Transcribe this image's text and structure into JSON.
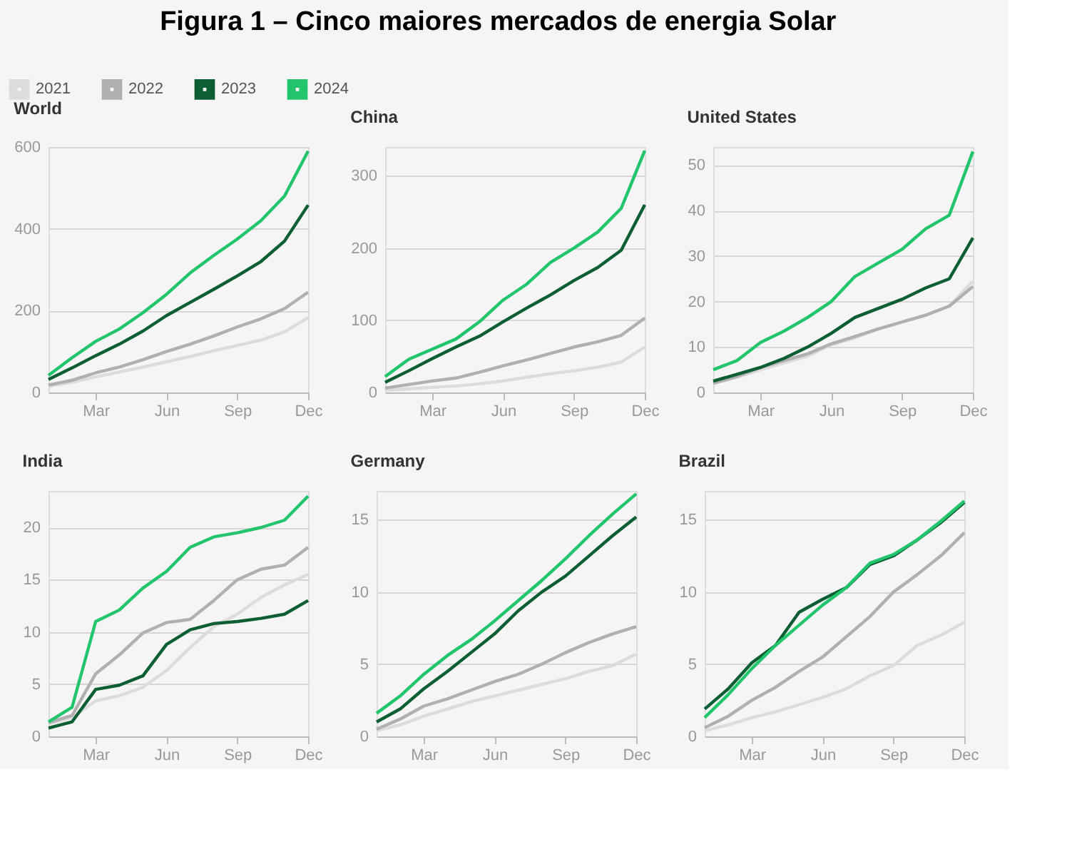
{
  "chart_data": [
    {
      "type": "line",
      "title": "World",
      "annotations": [
        "Figura 1 – Cinco maiores mercados de energia Solar"
      ],
      "legend": "top left",
      "grid": "y",
      "categories": [
        null,
        null,
        "Mar",
        null,
        null,
        "Jun",
        null,
        null,
        "Sep",
        null,
        null,
        "Dec"
      ],
      "ylim": [
        0,
        600
      ],
      "yticks": [
        0,
        200,
        400,
        600
      ],
      "series": [
        {
          "name": "2021",
          "color": "#dcdcdc",
          "values": [
            15,
            25,
            38,
            50,
            62,
            75,
            88,
            102,
            115,
            128,
            148,
            183
          ]
        },
        {
          "name": "2022",
          "color": "#b0b0b0",
          "values": [
            18,
            30,
            48,
            62,
            80,
            100,
            118,
            138,
            160,
            180,
            205,
            245
          ]
        },
        {
          "name": "2023",
          "color": "#0d5e32",
          "values": [
            32,
            60,
            90,
            118,
            150,
            188,
            220,
            252,
            285,
            320,
            370,
            458
          ]
        },
        {
          "name": "2024",
          "color": "#22c56c",
          "values": [
            42,
            85,
            125,
            155,
            195,
            240,
            292,
            335,
            375,
            420,
            480,
            590
          ]
        }
      ]
    },
    {
      "type": "line",
      "title": "China",
      "grid": "y",
      "categories": [
        null,
        null,
        "Mar",
        null,
        null,
        "Jun",
        null,
        null,
        "Sep",
        null,
        null,
        "Dec"
      ],
      "ylim": [
        0,
        340
      ],
      "yticks": [
        0,
        100,
        200,
        300
      ],
      "series": [
        {
          "color": "#dcdcdc",
          "values": [
            3,
            5,
            7,
            9,
            12,
            16,
            21,
            26,
            30,
            35,
            42,
            63
          ]
        },
        {
          "color": "#b0b0b0",
          "values": [
            6,
            11,
            16,
            20,
            28,
            37,
            45,
            54,
            63,
            70,
            79,
            103
          ]
        },
        {
          "color": "#0d5e32",
          "values": [
            14,
            30,
            47,
            63,
            78,
            98,
            117,
            135,
            155,
            173,
            197,
            260
          ]
        },
        {
          "color": "#22c56c",
          "values": [
            22,
            46,
            60,
            74,
            98,
            128,
            150,
            180,
            200,
            222,
            255,
            335
          ]
        }
      ]
    },
    {
      "type": "line",
      "title": "United States",
      "grid": "y",
      "categories": [
        null,
        null,
        "Mar",
        null,
        null,
        "Jun",
        null,
        null,
        "Sep",
        null,
        null,
        "Dec"
      ],
      "ylim": [
        0,
        54
      ],
      "yticks": [
        0,
        10,
        20,
        30,
        40,
        50
      ],
      "series": [
        {
          "color": "#dcdcdc",
          "values": [
            2,
            3.3,
            5,
            6.5,
            8,
            10.5,
            12,
            14,
            15.5,
            17,
            19,
            24.5
          ]
        },
        {
          "color": "#b0b0b0",
          "values": [
            2,
            3.5,
            5.5,
            7,
            8.5,
            10.7,
            12.3,
            14,
            15.5,
            17,
            19,
            23.3
          ]
        },
        {
          "color": "#0d5e32",
          "values": [
            2.5,
            4,
            5.5,
            7.5,
            10,
            13,
            16.5,
            18.5,
            20.5,
            23,
            25,
            34
          ]
        },
        {
          "color": "#22c56c",
          "values": [
            5,
            7,
            11,
            13.5,
            16.5,
            20,
            25.5,
            28.5,
            31.5,
            36,
            39,
            53
          ]
        }
      ]
    },
    {
      "type": "line",
      "title": "India",
      "grid": "y",
      "categories": [
        null,
        null,
        "Mar",
        null,
        null,
        "Jun",
        null,
        null,
        "Sep",
        null,
        null,
        "Dec"
      ],
      "ylim": [
        0,
        23.5
      ],
      "yticks": [
        0,
        5,
        10,
        15,
        20
      ],
      "series": [
        {
          "color": "#dcdcdc",
          "values": [
            1.2,
            1.8,
            3.4,
            3.9,
            4.7,
            6.3,
            8.5,
            10.5,
            11.7,
            13.3,
            14.5,
            15.5
          ]
        },
        {
          "color": "#b0b0b0",
          "values": [
            1.3,
            2,
            6,
            7.8,
            9.9,
            10.9,
            11.2,
            13,
            15,
            16,
            16.4,
            18.1
          ]
        },
        {
          "color": "#0d5e32",
          "values": [
            0.8,
            1.4,
            4.5,
            4.9,
            5.8,
            8.8,
            10.2,
            10.8,
            11,
            11.3,
            11.7,
            13
          ]
        },
        {
          "color": "#22c56c",
          "values": [
            1.4,
            2.8,
            11,
            12.1,
            14.2,
            15.8,
            18.1,
            19.1,
            19.5,
            20,
            20.7,
            23
          ]
        }
      ]
    },
    {
      "type": "line",
      "title": "Germany",
      "grid": "y",
      "categories": [
        null,
        null,
        "Mar",
        null,
        null,
        "Jun",
        null,
        null,
        "Sep",
        null,
        null,
        "Dec"
      ],
      "ylim": [
        0,
        17
      ],
      "yticks": [
        0,
        5,
        10,
        15
      ],
      "series": [
        {
          "color": "#dcdcdc",
          "values": [
            0.4,
            0.8,
            1.4,
            1.9,
            2.4,
            2.8,
            3.2,
            3.6,
            4,
            4.5,
            4.9,
            5.7
          ]
        },
        {
          "color": "#b0b0b0",
          "values": [
            0.5,
            1.2,
            2.1,
            2.6,
            3.2,
            3.8,
            4.3,
            5,
            5.8,
            6.5,
            7.1,
            7.6
          ]
        },
        {
          "color": "#0d5e32",
          "values": [
            1,
            1.9,
            3.3,
            4.5,
            5.8,
            7.1,
            8.7,
            10,
            11.1,
            12.5,
            13.9,
            15.2
          ]
        },
        {
          "color": "#22c56c",
          "values": [
            1.6,
            2.8,
            4.3,
            5.6,
            6.7,
            8,
            9.4,
            10.8,
            12.3,
            13.9,
            15.4,
            16.8
          ]
        }
      ]
    },
    {
      "type": "line",
      "title": "Brazil",
      "grid": "y",
      "categories": [
        null,
        null,
        "Mar",
        null,
        null,
        "Jun",
        null,
        null,
        "Sep",
        null,
        null,
        "Dec"
      ],
      "ylim": [
        0,
        17
      ],
      "yticks": [
        0,
        5,
        10,
        15
      ],
      "series": [
        {
          "color": "#dcdcdc",
          "values": [
            0.4,
            0.8,
            1.3,
            1.7,
            2.2,
            2.7,
            3.3,
            4.2,
            4.9,
            6.3,
            7,
            7.9
          ]
        },
        {
          "color": "#b0b0b0",
          "values": [
            0.6,
            1.4,
            2.5,
            3.4,
            4.5,
            5.5,
            6.9,
            8.3,
            10,
            11.2,
            12.5,
            14.1
          ]
        },
        {
          "color": "#0d5e32",
          "values": [
            1.9,
            3.3,
            5.1,
            6.3,
            8.6,
            9.5,
            10.3,
            11.9,
            12.5,
            13.6,
            14.8,
            16.2
          ]
        },
        {
          "color": "#22c56c",
          "values": [
            1.3,
            2.9,
            4.7,
            6.3,
            7.7,
            9.1,
            10.3,
            12,
            12.6,
            13.6,
            14.9,
            16.3
          ]
        }
      ]
    }
  ]
}
